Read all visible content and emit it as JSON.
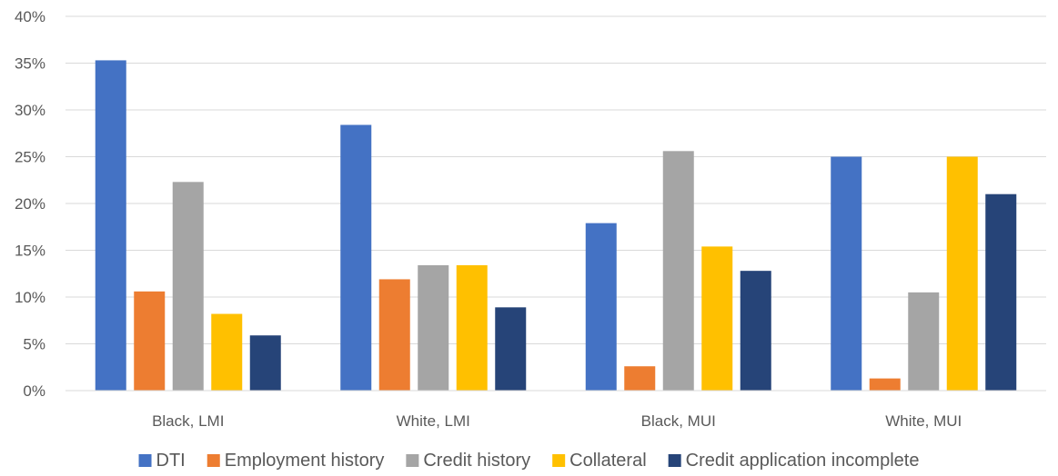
{
  "chart_data": {
    "type": "bar",
    "categories": [
      "Black, LMI",
      "White, LMI",
      "Black, MUI",
      "White, MUI"
    ],
    "series": [
      {
        "name": "DTI",
        "color": "#4472c4",
        "values": [
          35.3,
          28.4,
          17.9,
          25.0
        ]
      },
      {
        "name": "Employment history",
        "color": "#ed7d31",
        "values": [
          10.6,
          11.9,
          2.6,
          1.3
        ]
      },
      {
        "name": "Credit history",
        "color": "#a5a5a5",
        "values": [
          22.3,
          13.4,
          25.6,
          10.5
        ]
      },
      {
        "name": "Collateral",
        "color": "#ffc000",
        "values": [
          8.2,
          13.4,
          15.4,
          25.0
        ]
      },
      {
        "name": "Credit application incomplete",
        "color": "#264478",
        "values": [
          5.9,
          8.9,
          12.8,
          21.0
        ]
      }
    ],
    "yticks": [
      "0%",
      "5%",
      "10%",
      "15%",
      "20%",
      "25%",
      "30%",
      "35%",
      "40%"
    ],
    "ylim": [
      0,
      40
    ],
    "grid": true,
    "legend_position": "bottom"
  }
}
